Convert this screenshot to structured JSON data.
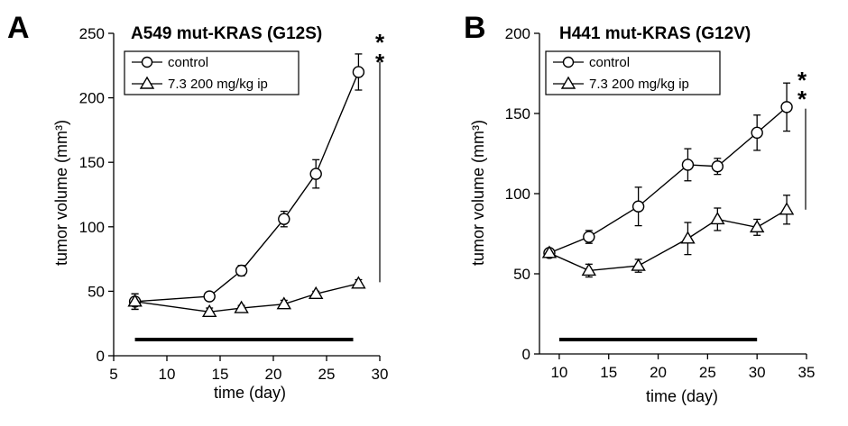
{
  "panels": [
    {
      "letter": "A",
      "title": "A549 mut-KRAS (G12S)",
      "significance": "**",
      "legend": {
        "control_label": "control",
        "treated_label": "7.3 200 mg/kg ip"
      }
    },
    {
      "letter": "B",
      "title": "H441 mut-KRAS (G12V)",
      "significance": "**",
      "legend": {
        "control_label": "control",
        "treated_label": "7.3 200 mg/kg ip"
      }
    }
  ],
  "chart_data": [
    {
      "type": "line",
      "title": "A549 mut-KRAS (G12S)",
      "xlabel": "time (day)",
      "ylabel": "tumor volume (mm³)",
      "xlim": [
        5,
        30
      ],
      "ylim": [
        0,
        250
      ],
      "xticks": [
        5,
        10,
        15,
        20,
        25,
        30
      ],
      "yticks": [
        0,
        50,
        100,
        150,
        200,
        250
      ],
      "legend_position": "top-left",
      "grid": false,
      "series": [
        {
          "name": "control",
          "marker": "circle",
          "x": [
            7,
            14,
            17,
            21,
            24,
            28
          ],
          "y": [
            42,
            46,
            66,
            106,
            141,
            220
          ],
          "error": [
            6,
            0,
            4,
            6,
            11,
            14
          ]
        },
        {
          "name": "7.3 200 mg/kg ip",
          "marker": "triangle",
          "x": [
            7,
            14,
            17,
            21,
            24,
            28
          ],
          "y": [
            42,
            34,
            37,
            40,
            48,
            56
          ],
          "error": [
            6,
            3,
            2,
            3,
            2,
            3
          ]
        }
      ],
      "treatment_period": [
        7,
        27.5
      ],
      "significance": {
        "label": "**",
        "x": 28,
        "y_range": [
          57,
          228
        ]
      }
    },
    {
      "type": "line",
      "title": "H441 mut-KRAS (G12V)",
      "xlabel": "time (day)",
      "ylabel": "tumor volume (mm³)",
      "xlim": [
        8,
        35
      ],
      "ylim": [
        0,
        200
      ],
      "xticks": [
        10,
        15,
        20,
        25,
        30,
        35
      ],
      "yticks": [
        0,
        50,
        100,
        150,
        200
      ],
      "legend_position": "top-left",
      "grid": false,
      "series": [
        {
          "name": "control",
          "marker": "circle",
          "x": [
            9,
            13,
            18,
            23,
            26,
            30,
            33
          ],
          "y": [
            63,
            73,
            92,
            118,
            117,
            138,
            154
          ],
          "error": [
            0,
            4,
            12,
            10,
            5,
            11,
            15
          ]
        },
        {
          "name": "7.3 200 mg/kg ip",
          "marker": "triangle",
          "x": [
            9,
            13,
            18,
            23,
            26,
            30,
            33
          ],
          "y": [
            63,
            52,
            55,
            72,
            84,
            79,
            90
          ],
          "error": [
            0,
            4,
            4,
            10,
            7,
            5,
            9
          ]
        }
      ],
      "treatment_period": [
        10,
        30
      ],
      "significance": {
        "label": "**",
        "x": 33,
        "y_range": [
          90,
          153
        ]
      }
    }
  ]
}
